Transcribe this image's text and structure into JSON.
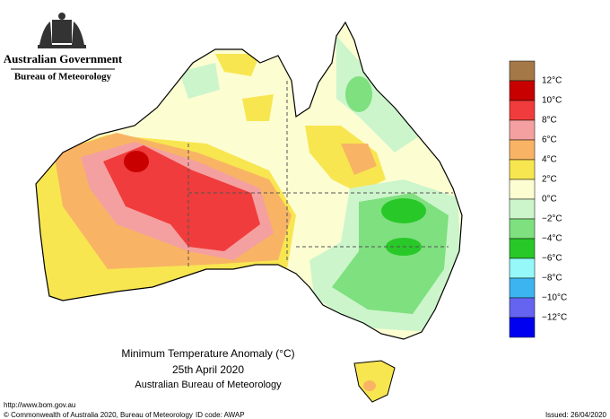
{
  "header": {
    "government": "Australian Government",
    "agency": "Bureau of Meteorology"
  },
  "map": {
    "title": "Minimum Temperature Anomaly (°C)",
    "date": "25th April 2020",
    "source": "Australian Bureau of Meteorology"
  },
  "legend": {
    "items": [
      {
        "label": null,
        "color": "#a47847"
      },
      {
        "label": "12°C",
        "color": "#c80000"
      },
      {
        "label": "10°C",
        "color": "#f03c3c"
      },
      {
        "label": "8°C",
        "color": "#f5a0a0"
      },
      {
        "label": "6°C",
        "color": "#f8b464"
      },
      {
        "label": "4°C",
        "color": "#f8e650"
      },
      {
        "label": "2°C",
        "color": "#fdfdd2"
      },
      {
        "label": "0°C",
        "color": "#ccf5cc"
      },
      {
        "label": "−2°C",
        "color": "#7ee07e"
      },
      {
        "label": "−4°C",
        "color": "#28c828"
      },
      {
        "label": "−6°C",
        "color": "#96f8f8"
      },
      {
        "label": "−8°C",
        "color": "#3cb4f0"
      },
      {
        "label": "−10°C",
        "color": "#6464f0"
      },
      {
        "label": "−12°C",
        "color": "#0000f0"
      }
    ]
  },
  "footer": {
    "url": "http://www.bom.gov.au",
    "copyright": "© Commonwealth of Australia 2020, Bureau of Meteorology",
    "id_code": "ID code: AWAP",
    "issued": "Issued: 26/04/2020"
  }
}
